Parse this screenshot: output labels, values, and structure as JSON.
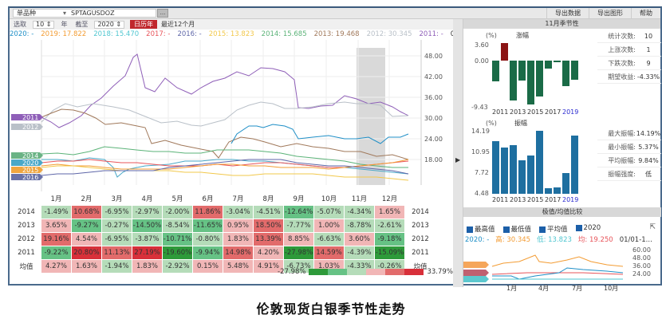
{
  "toolbar": {
    "instrument_type": "单品种",
    "symbol": "SPTAGUSDOZ",
    "browse_button": "...",
    "select_label": "选取",
    "years_value": "10",
    "years_unit": "年",
    "until_label": "截至",
    "until_year": "2020",
    "calendar_year_button": "日历年",
    "last12_button": "最近12个月"
  },
  "menu": {
    "export_data": "导出数据",
    "export_chart": "导出图形",
    "help": "帮助"
  },
  "legend": [
    {
      "label": "2020: -",
      "color": "#1f8fc7"
    },
    {
      "label": "2019: 17.822",
      "color": "#f39c33"
    },
    {
      "label": "2018: 15.470",
      "color": "#4fc6d0"
    },
    {
      "label": "2017: -",
      "color": "#e8545a"
    },
    {
      "label": "2016: -",
      "color": "#5e66a8"
    },
    {
      "label": "2015: 13.823",
      "color": "#f2c84b"
    },
    {
      "label": "2014: 15.685",
      "color": "#5bb378"
    },
    {
      "label": "2013: 19.468",
      "color": "#a0785a"
    },
    {
      "label": "2012: 30.345",
      "color": "#b9c0c8"
    },
    {
      "label": "2011: -",
      "color": "#8f5fb8"
    },
    {
      "label": "01/01-...",
      "color": "#333333"
    }
  ],
  "main_chart": {
    "y_ticks": [
      "48.00",
      "42.00",
      "36.00",
      "30.00",
      "24.00",
      "18.00"
    ],
    "x_ticks": [
      "1月",
      "2月",
      "3月",
      "4月",
      "5月",
      "6月",
      "7月",
      "8月",
      "9月",
      "10月",
      "11月",
      "12月"
    ],
    "line_tags": [
      {
        "label": "2011",
        "color": "#8f5fb8"
      },
      {
        "label": "2012",
        "color": "#b9c0c8"
      },
      {
        "label": "2014",
        "color": "#6ab385"
      },
      {
        "label": "2020",
        "color": "#4aa8c8"
      },
      {
        "label": "2015",
        "color": "#f0a640"
      },
      {
        "label": "2016",
        "color": "#6a72a8"
      }
    ]
  },
  "heatmap": {
    "columns": [
      "1月",
      "2月",
      "3月",
      "4月",
      "5月",
      "6月",
      "7月",
      "8月",
      "9月",
      "10月",
      "11月",
      "12月"
    ],
    "rows": [
      {
        "year": "2014",
        "values": [
          "-1.49%",
          "10.68%",
          "-6.95%",
          "-2.97%",
          "-2.00%",
          "11.86%",
          "-3.04%",
          "-4.51%",
          "-12.64%",
          "-5.07%",
          "-4.34%",
          "1.65%"
        ]
      },
      {
        "year": "2013",
        "values": [
          "3.65%",
          "-9.27%",
          "-0.27%",
          "-14.50%",
          "-8.54%",
          "-11.65%",
          "0.95%",
          "18.50%",
          "-7.77%",
          "1.00%",
          "-8.78%",
          "-2.61%"
        ]
      },
      {
        "year": "2012",
        "values": [
          "19.16%",
          "4.54%",
          "-6.95%",
          "-3.87%",
          "-10.71%",
          "-0.80%",
          "1.83%",
          "13.39%",
          "8.85%",
          "-6.63%",
          "3.60%",
          "-9.18%"
        ]
      },
      {
        "year": "2011",
        "values": [
          "-9.22%",
          "20.80%",
          "11.13%",
          "27.19%",
          "-19.60%",
          "-9.94%",
          "14.98%",
          "4.20%",
          "-27.98%",
          "14.59%",
          "-4.39%",
          "-15.09%"
        ]
      },
      {
        "year": "均值",
        "values": [
          "4.27%",
          "1.63%",
          "-1.94%",
          "1.83%",
          "-2.92%",
          "0.15%",
          "5.48%",
          "4.91%",
          "-6.73%",
          "1.03%",
          "-4.33%",
          "-0.26%"
        ]
      }
    ],
    "scale_min": "-27.98%",
    "scale_max": "33.79%",
    "scale_colors": [
      "#2e9a3a",
      "#66c285",
      "#b5dcb9",
      "#f1b6b6",
      "#e26b6b",
      "#d8303a"
    ]
  },
  "seasonality": {
    "header": "11月季节性",
    "rise_chart": {
      "unit": "(%)",
      "title": "涨幅",
      "y_ticks": [
        "3.60",
        "0.00",
        "-9.43"
      ],
      "x_ticks": [
        "2011",
        "2013",
        "2015",
        "2017",
        "2019"
      ]
    },
    "amp_chart": {
      "unit": "(%)",
      "title": "振幅",
      "y_ticks": [
        "14.19",
        "10.95",
        "7.72",
        "4.48"
      ],
      "x_ticks": [
        "2011",
        "2013",
        "2015",
        "2017",
        "2019"
      ]
    },
    "stats": [
      {
        "label": "统计次数:",
        "value": "10"
      },
      {
        "label": "上涨次数:",
        "value": "1"
      },
      {
        "label": "下跌次数:",
        "value": "9"
      },
      {
        "label": "期望收益:",
        "value": "-4.33%"
      }
    ],
    "amp_stats": [
      {
        "label": "最大振幅:",
        "value": "14.19%"
      },
      {
        "label": "最小振幅:",
        "value": "5.37%"
      },
      {
        "label": "平均振幅:",
        "value": "9.84%"
      },
      {
        "label": "振幅强度:",
        "value": "低"
      }
    ]
  },
  "compare": {
    "header": "极值/均值比较",
    "checks": [
      "最高值",
      "最低值",
      "平均值",
      "2020"
    ],
    "legend": [
      {
        "label": "2020: -",
        "color": "#1f8fc7"
      },
      {
        "label": "高: 30.345",
        "color": "#f39c33"
      },
      {
        "label": "低: 13.823",
        "color": "#4fc6d0"
      },
      {
        "label": "均: 19.250",
        "color": "#e8545a"
      },
      {
        "label": "01/01-1...",
        "color": "#333333"
      }
    ],
    "y_ticks": [
      "60.00",
      "48.00",
      "36.00",
      "24.00"
    ],
    "x_ticks": [
      "1月",
      "4月",
      "7月",
      "10月"
    ],
    "tags": [
      "高",
      "均",
      "低"
    ]
  },
  "chart_data": [
    {
      "type": "bar",
      "title": "涨幅",
      "ylabel": "(%)",
      "categories": [
        "2011",
        "2012",
        "2013",
        "2014",
        "2015",
        "2016",
        "2017",
        "2018",
        "2019",
        "2020"
      ],
      "values": [
        -4.39,
        3.6,
        -8.78,
        -4.34,
        -9.43,
        -7.6,
        -1.8,
        -0.4,
        -6.0,
        -4.3
      ],
      "ylim": [
        -9.43,
        3.6
      ]
    },
    {
      "type": "bar",
      "title": "振幅",
      "ylabel": "(%)",
      "categories": [
        "2011",
        "2012",
        "2013",
        "2014",
        "2015",
        "2016",
        "2017",
        "2018",
        "2019",
        "2020"
      ],
      "values": [
        11.8,
        10.9,
        11.3,
        8.6,
        9.4,
        14.19,
        5.37,
        5.4,
        7.8,
        13.4
      ],
      "ylim": [
        4.48,
        14.19
      ]
    }
  ],
  "caption": "伦敦现货白银季节性走势"
}
